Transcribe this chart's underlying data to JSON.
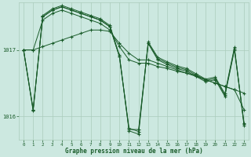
{
  "background_color": "#cce8e0",
  "grid_color": "#aaccbb",
  "line_color": "#1a5c2a",
  "xlabel": "Graphe pression niveau de la mer (hPa)",
  "yticks": [
    1016,
    1017
  ],
  "xticks": [
    0,
    1,
    2,
    3,
    4,
    5,
    6,
    7,
    8,
    9,
    10,
    11,
    12,
    13,
    14,
    15,
    16,
    17,
    18,
    19,
    20,
    21,
    22,
    23
  ],
  "xlim": [
    -0.5,
    23.5
  ],
  "ylim": [
    1015.65,
    1017.72
  ],
  "series": [
    [
      1017.0,
      1017.0,
      1017.05,
      1017.1,
      1017.15,
      1017.2,
      1017.25,
      1017.3,
      1017.3,
      1017.28,
      1017.1,
      1016.95,
      1016.85,
      1016.85,
      1016.8,
      1016.75,
      1016.7,
      1016.65,
      1016.6,
      1016.55,
      1016.5,
      1016.45,
      1016.4,
      1016.35
    ],
    [
      1017.0,
      1017.0,
      1017.45,
      1017.55,
      1017.6,
      1017.55,
      1017.5,
      1017.45,
      1017.4,
      1017.3,
      1017.05,
      1016.85,
      1016.8,
      1016.8,
      1016.75,
      1016.72,
      1016.68,
      1016.65,
      1016.62,
      1016.55,
      1016.5,
      1016.45,
      1016.4,
      1016.1
    ],
    [
      1017.0,
      1016.1,
      1017.5,
      1017.6,
      1017.65,
      1017.6,
      1017.55,
      1017.5,
      1017.45,
      1017.35,
      1016.9,
      1015.8,
      1015.8,
      1017.1,
      1016.85,
      1016.78,
      1016.72,
      1016.68,
      1016.6,
      1016.52,
      1016.55,
      1016.3,
      1017.0,
      1015.9
    ],
    [
      1017.0,
      1016.1,
      1017.5,
      1017.6,
      1017.65,
      1017.6,
      1017.55,
      1017.5,
      1017.45,
      1017.35,
      1016.9,
      1015.82,
      1015.77,
      1017.1,
      1016.87,
      1016.8,
      1016.74,
      1016.7,
      1016.62,
      1016.54,
      1016.57,
      1016.32,
      1017.02,
      1015.88
    ],
    [
      1017.0,
      1016.08,
      1017.52,
      1017.62,
      1017.67,
      1017.62,
      1017.57,
      1017.52,
      1017.47,
      1017.37,
      1016.92,
      1015.78,
      1015.73,
      1017.12,
      1016.89,
      1016.82,
      1016.76,
      1016.72,
      1016.64,
      1016.56,
      1016.59,
      1016.34,
      1017.04,
      1015.86
    ]
  ]
}
